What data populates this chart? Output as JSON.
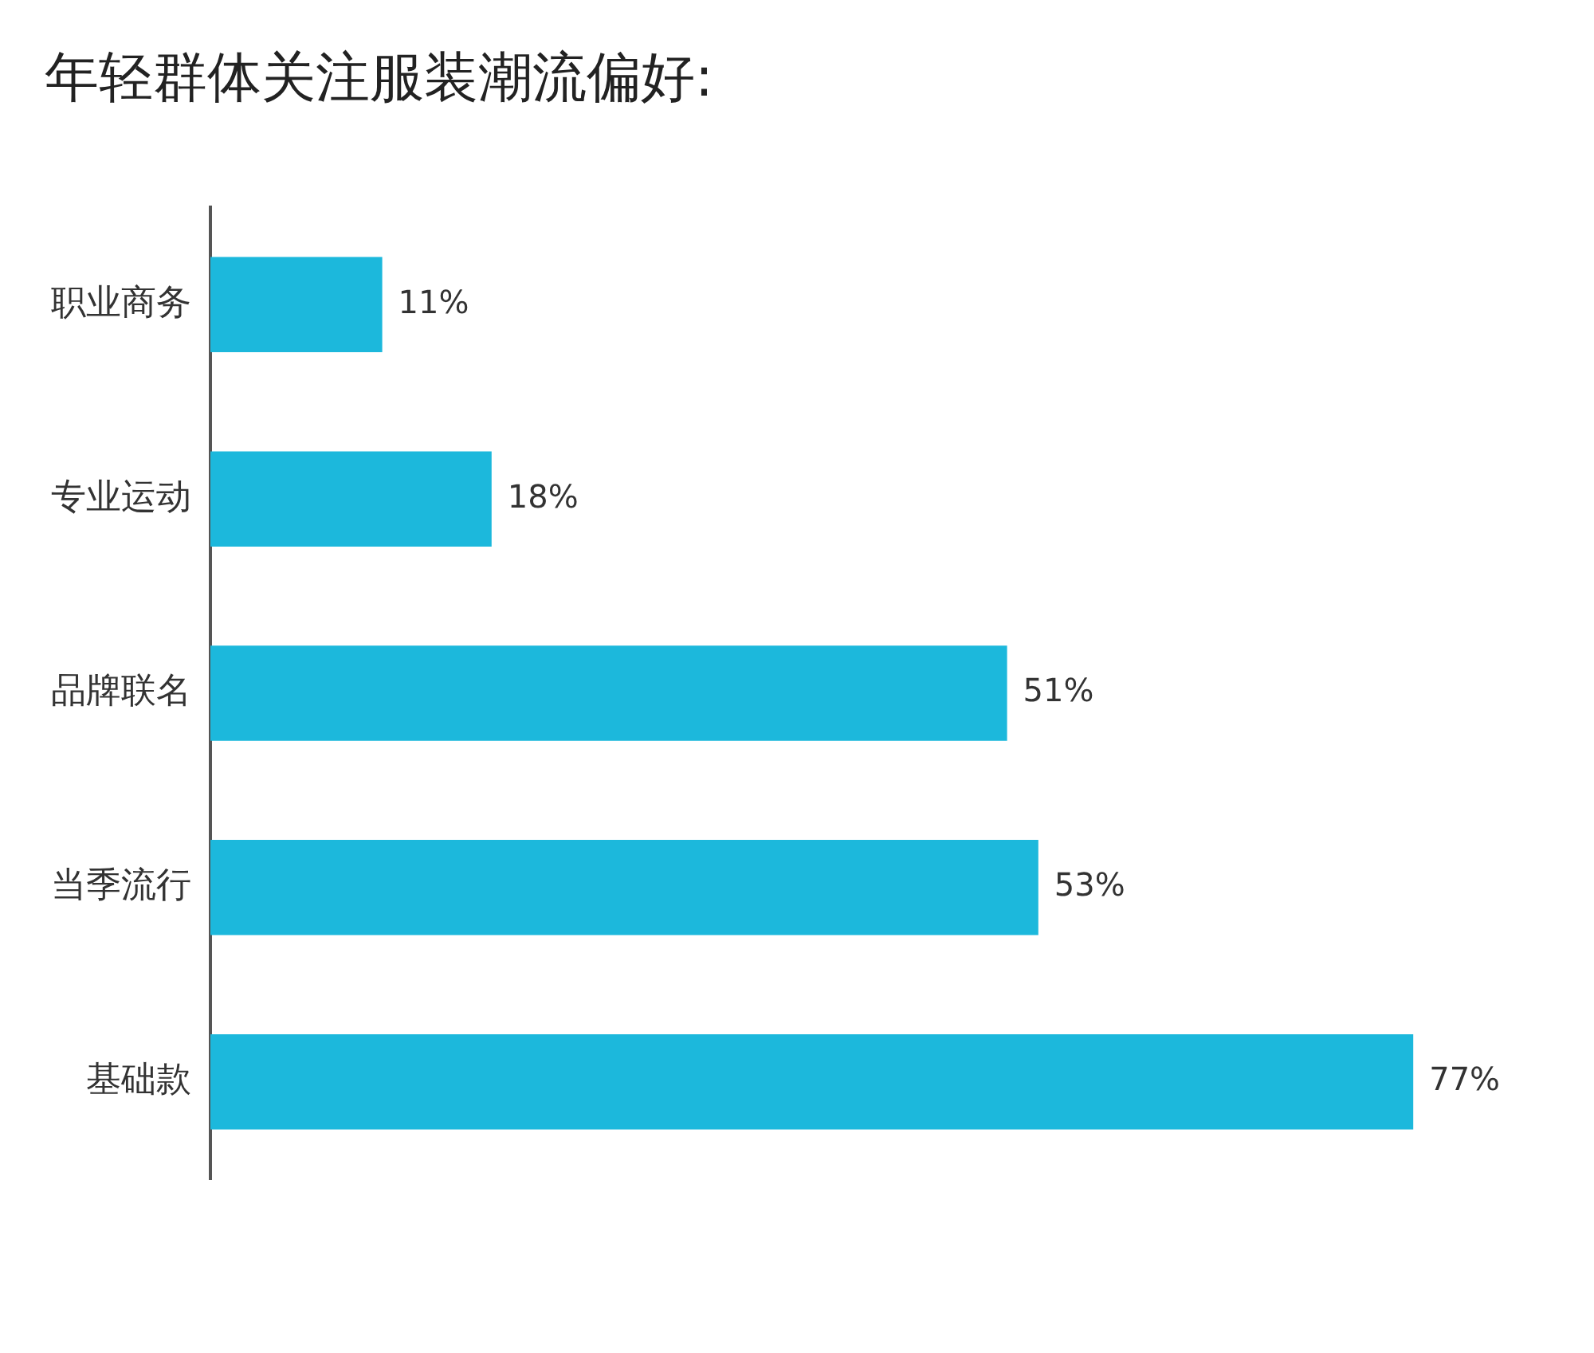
{
  "chart_data": {
    "type": "bar",
    "orientation": "horizontal",
    "title": "年轻群体关注服装潮流偏好:",
    "categories": [
      "职业商务",
      "专业运动",
      "品牌联名",
      "当季流行",
      "基础款"
    ],
    "values": [
      11,
      18,
      51,
      53,
      77
    ],
    "value_labels": [
      "11%",
      "18%",
      "51%",
      "53%",
      "77%"
    ],
    "color": "#1cb8dc",
    "tick_labels": "y",
    "grid": false,
    "legend": false
  }
}
